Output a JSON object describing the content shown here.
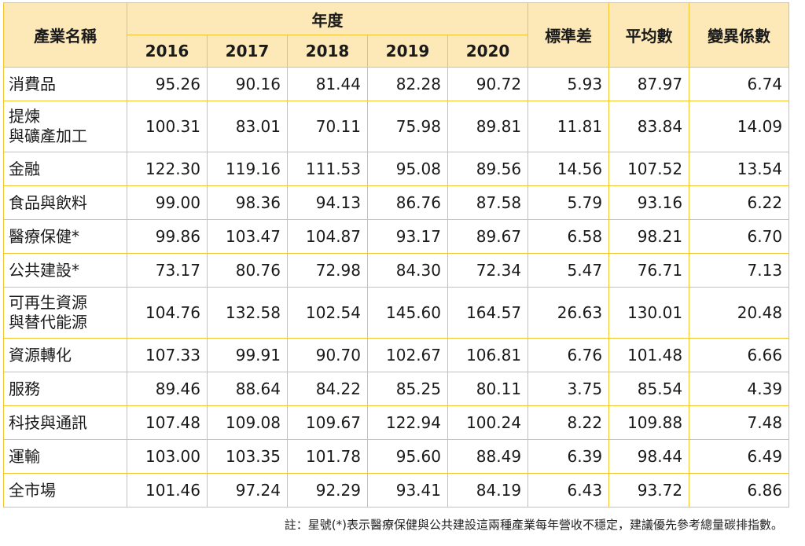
{
  "table": {
    "header": {
      "industry": "產業名稱",
      "year_group": "年度",
      "years": [
        "2016",
        "2017",
        "2018",
        "2019",
        "2020"
      ],
      "std": "標準差",
      "mean": "平均數",
      "cv": "變異係數"
    },
    "rows": [
      {
        "name": [
          "消費品"
        ],
        "values": [
          "95.26",
          "90.16",
          "81.44",
          "82.28",
          "90.72",
          "5.93",
          "87.97",
          "6.74"
        ]
      },
      {
        "name": [
          "提煉",
          "與礦產加工"
        ],
        "values": [
          "100.31",
          "83.01",
          "70.11",
          "75.98",
          "89.81",
          "11.81",
          "83.84",
          "14.09"
        ]
      },
      {
        "name": [
          "金融"
        ],
        "values": [
          "122.30",
          "119.16",
          "111.53",
          "95.08",
          "89.56",
          "14.56",
          "107.52",
          "13.54"
        ]
      },
      {
        "name": [
          "食品與飲料"
        ],
        "values": [
          "99.00",
          "98.36",
          "94.13",
          "86.76",
          "87.58",
          "5.79",
          "93.16",
          "6.22"
        ]
      },
      {
        "name": [
          "醫療保健*"
        ],
        "values": [
          "99.86",
          "103.47",
          "104.87",
          "93.17",
          "89.67",
          "6.58",
          "98.21",
          "6.70"
        ]
      },
      {
        "name": [
          "公共建設*"
        ],
        "values": [
          "73.17",
          "80.76",
          "72.98",
          "84.30",
          "72.34",
          "5.47",
          "76.71",
          "7.13"
        ]
      },
      {
        "name": [
          "可再生資源",
          "與替代能源"
        ],
        "values": [
          "104.76",
          "132.58",
          "102.54",
          "145.60",
          "164.57",
          "26.63",
          "130.01",
          "20.48"
        ]
      },
      {
        "name": [
          "資源轉化"
        ],
        "values": [
          "107.33",
          "99.91",
          "90.70",
          "102.67",
          "106.81",
          "6.76",
          "101.48",
          "6.66"
        ]
      },
      {
        "name": [
          "服務"
        ],
        "values": [
          "89.46",
          "88.64",
          "84.22",
          "85.25",
          "80.11",
          "3.75",
          "85.54",
          "4.39"
        ]
      },
      {
        "name": [
          "科技與通訊"
        ],
        "values": [
          "107.48",
          "109.08",
          "109.67",
          "122.94",
          "100.24",
          "8.22",
          "109.88",
          "7.48"
        ]
      },
      {
        "name": [
          "運輸"
        ],
        "values": [
          "103.00",
          "103.35",
          "101.78",
          "95.60",
          "88.49",
          "6.39",
          "98.44",
          "6.49"
        ]
      },
      {
        "name": [
          "全市場"
        ],
        "values": [
          "101.46",
          "97.24",
          "92.29",
          "93.41",
          "84.19",
          "6.43",
          "93.72",
          "6.86"
        ]
      }
    ]
  },
  "note": "註：星號(*)表示醫療保健與公共建設這兩種產業每年營收不穩定，建議優先參考總量碳排指數。",
  "colors": {
    "border": "#f5c531",
    "header_bg": "#fde9b8"
  }
}
